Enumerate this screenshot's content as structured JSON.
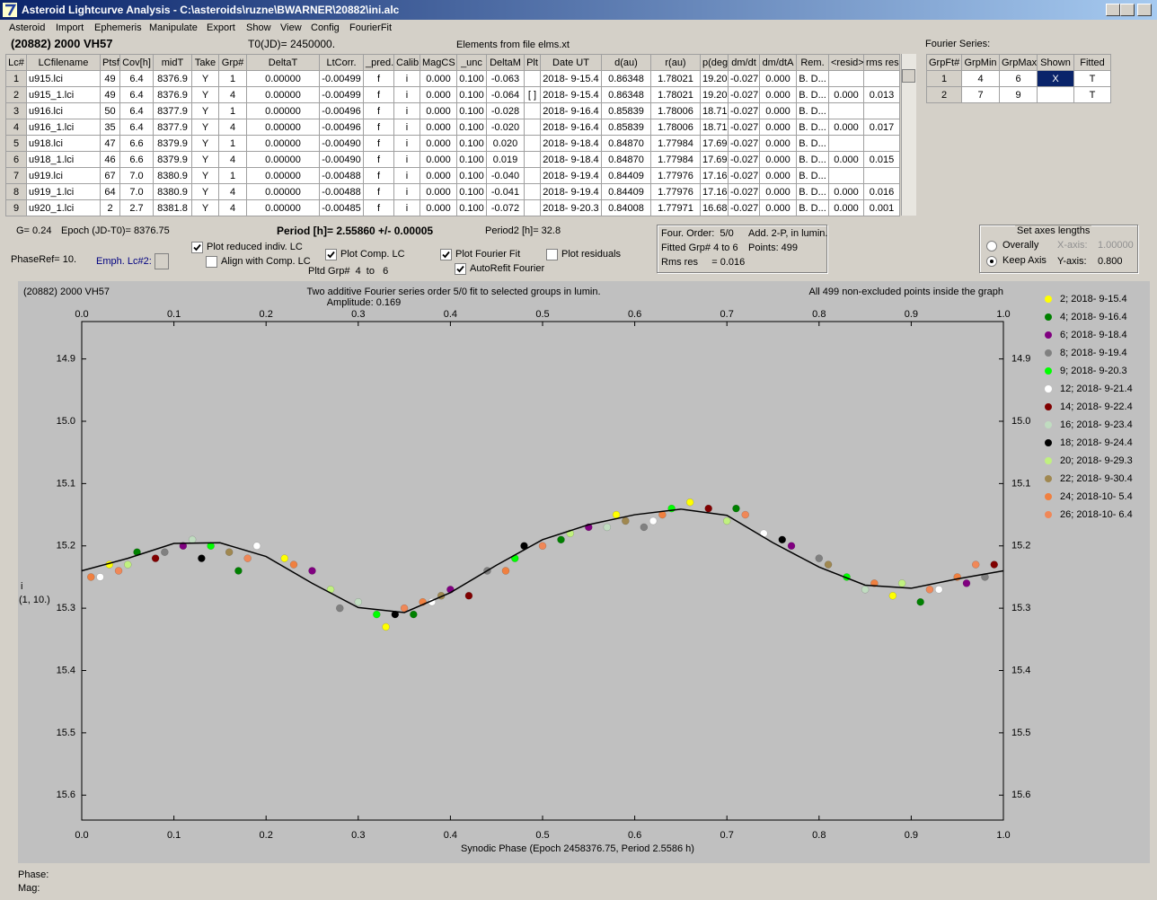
{
  "window": {
    "title": "Asteroid Lightcurve Analysis - C:\\asteroids\\ruzne\\BWARNER\\20882\\ini.alc",
    "menu": [
      "Asteroid",
      "Import",
      "Ephemeris",
      "Manipulate",
      "Export",
      "Show",
      "View",
      "Config",
      "FourierFit"
    ]
  },
  "header": {
    "object": "(20882) 2000 VH57",
    "t0": "T0(JD)= 2450000.",
    "elements": "Elements from file elms.xt",
    "fourier_label": "Fourier Series:"
  },
  "table": {
    "columns": [
      "Lc#",
      "LCfilename",
      "Ptsf",
      "Cov[h]",
      "midT",
      "Take",
      "Grp#",
      "DeltaT",
      "LtCorr.",
      "_pred.",
      "Calib.",
      "MagCS",
      "_unc",
      "DeltaM",
      "Plt",
      "Date UT",
      "d(au)",
      "r(au)",
      "p(deg)",
      "dm/dt",
      "dm/dtA",
      "Rem.",
      "<resid>",
      "rms res"
    ],
    "rows": [
      [
        "1",
        "u915.lci",
        "49",
        "6.4",
        "8376.9",
        "Y",
        "1",
        "0.00000",
        "-0.00499",
        "f",
        "i",
        "0.000",
        "0.100",
        "-0.063",
        null,
        "2018- 9-15.4",
        "0.86348",
        "1.78021",
        "19.20",
        "-0.027",
        "0.000",
        "B. D...",
        null,
        null
      ],
      [
        "2",
        "u915_1.lci",
        "49",
        "6.4",
        "8376.9",
        "Y",
        "4",
        "0.00000",
        "-0.00499",
        "f",
        "i",
        "0.000",
        "0.100",
        "-0.064",
        "[ ]",
        "2018- 9-15.4",
        "0.86348",
        "1.78021",
        "19.20",
        "-0.027",
        "0.000",
        "B. D...",
        "0.000",
        "0.013"
      ],
      [
        "3",
        "u916.lci",
        "50",
        "6.4",
        "8377.9",
        "Y",
        "1",
        "0.00000",
        "-0.00496",
        "f",
        "i",
        "0.000",
        "0.100",
        "-0.028",
        null,
        "2018- 9-16.4",
        "0.85839",
        "1.78006",
        "18.71",
        "-0.027",
        "0.000",
        "B. D...",
        null,
        null
      ],
      [
        "4",
        "u916_1.lci",
        "35",
        "6.4",
        "8377.9",
        "Y",
        "4",
        "0.00000",
        "-0.00496",
        "f",
        "i",
        "0.000",
        "0.100",
        "-0.020",
        null,
        "2018- 9-16.4",
        "0.85839",
        "1.78006",
        "18.71",
        "-0.027",
        "0.000",
        "B. D...",
        "0.000",
        "0.017"
      ],
      [
        "5",
        "u918.lci",
        "47",
        "6.6",
        "8379.9",
        "Y",
        "1",
        "0.00000",
        "-0.00490",
        "f",
        "i",
        "0.000",
        "0.100",
        "0.020",
        null,
        "2018- 9-18.4",
        "0.84870",
        "1.77984",
        "17.69",
        "-0.027",
        "0.000",
        "B. D...",
        null,
        null
      ],
      [
        "6",
        "u918_1.lci",
        "46",
        "6.6",
        "8379.9",
        "Y",
        "4",
        "0.00000",
        "-0.00490",
        "f",
        "i",
        "0.000",
        "0.100",
        "0.019",
        null,
        "2018- 9-18.4",
        "0.84870",
        "1.77984",
        "17.69",
        "-0.027",
        "0.000",
        "B. D...",
        "0.000",
        "0.015"
      ],
      [
        "7",
        "u919.lci",
        "67",
        "7.0",
        "8380.9",
        "Y",
        "1",
        "0.00000",
        "-0.00488",
        "f",
        "i",
        "0.000",
        "0.100",
        "-0.040",
        null,
        "2018- 9-19.4",
        "0.84409",
        "1.77976",
        "17.16",
        "-0.027",
        "0.000",
        "B. D...",
        null,
        null
      ],
      [
        "8",
        "u919_1.lci",
        "64",
        "7.0",
        "8380.9",
        "Y",
        "4",
        "0.00000",
        "-0.00488",
        "f",
        "i",
        "0.000",
        "0.100",
        "-0.041",
        null,
        "2018- 9-19.4",
        "0.84409",
        "1.77976",
        "17.16",
        "-0.027",
        "0.000",
        "B. D...",
        "0.000",
        "0.016"
      ],
      [
        "9",
        "u920_1.lci",
        "2",
        "2.7",
        "8381.8",
        "Y",
        "4",
        "0.00000",
        "-0.00485",
        "f",
        "i",
        "0.000",
        "0.100",
        "-0.072",
        null,
        "2018- 9-20.3",
        "0.84008",
        "1.77971",
        "16.68",
        "-0.027",
        "0.000",
        "B. D...",
        "0.000",
        "0.001"
      ]
    ]
  },
  "fourier_table": {
    "columns": [
      "GrpFt#",
      "GrpMin",
      "GrpMax",
      "Shown",
      "Fitted"
    ],
    "rows": [
      [
        "1",
        "4",
        "6",
        "X",
        "T"
      ],
      [
        "2",
        "7",
        "9",
        null,
        "T"
      ]
    ]
  },
  "info": {
    "g": "G= 0.24",
    "epoch": "Epoch (JD-T0)= 8376.75",
    "period": "Period [h]= 2.55860 +/- 0.00005",
    "period2": "Period2 [h]= 32.8",
    "phaseref": "PhaseRef= 10.",
    "emph": "Emph. Lc#2:",
    "pltd": "Pltd Grp#  4  to   6"
  },
  "checkboxes": [
    {
      "label": "Plot reduced indiv. LC",
      "checked": true
    },
    {
      "label": "Align with Comp. LC",
      "checked": false
    },
    {
      "label": "Plot Comp. LC",
      "checked": true
    },
    {
      "label": "Plot Fourier Fit",
      "checked": true
    },
    {
      "label": "Plot residuals",
      "checked": false
    },
    {
      "label": "AutoRefit Fourier",
      "checked": true
    }
  ],
  "fit_box": [
    "Four. Order:  5/0",
    "Add. 2-P, in lumin.",
    "Fitted Grp# 4 to 6",
    "Points: 499",
    "Rms res     = 0.016"
  ],
  "axes_box": {
    "title": "Set axes lengths",
    "radios": [
      {
        "label": "Overally",
        "selected": false
      },
      {
        "label": "Keep Axis",
        "selected": true
      }
    ],
    "x_label": "X-axis:",
    "x_value": "1.00000",
    "y_label": "Y-axis:",
    "y_value": "0.800"
  },
  "footer": {
    "phase": "Phase:",
    "mag": "Mag:"
  },
  "chart_data": {
    "type": "scatter",
    "title": "(20882) 2000 VH57",
    "subtitle": "Two additive Fourier series order 5/0 fit to selected groups in lumin.",
    "amplitude": "Amplitude: 0.169",
    "note": "All 499 non-excluded points inside the graph",
    "x_label": "Synodic Phase (Epoch 2458376.75, Period 2.5586 h)",
    "y_label": "i",
    "y_label2": "(1, 10.)",
    "xlim": [
      0,
      1
    ],
    "ylim": [
      14.84,
      15.64
    ],
    "y_inverted": true,
    "background": "#c0c0c0",
    "xticks": [
      {
        "value": 0,
        "label": "0.0"
      },
      0.1,
      0.2,
      0.3,
      0.4,
      0.5,
      0.6,
      0.7,
      0.8,
      0.9,
      {
        "value": 1,
        "label": "1.0"
      }
    ],
    "yticks": [
      14.9,
      {
        "value": 15,
        "label": "15.0"
      },
      15.1,
      15.2,
      15.3,
      15.4,
      15.5,
      15.6
    ],
    "fit_curve": {
      "color": "#000000",
      "x": [
        0,
        0.05,
        0.1,
        0.15,
        0.2,
        0.25,
        0.3,
        0.35,
        0.4,
        0.45,
        0.5,
        0.55,
        0.6,
        0.65,
        0.7,
        0.75,
        0.8,
        0.85,
        0.9,
        0.95,
        1
      ],
      "values": [
        15.24,
        15.22,
        15.196,
        15.195,
        15.217,
        15.26,
        15.299,
        15.307,
        15.275,
        15.231,
        15.19,
        15.166,
        15.15,
        15.141,
        15.151,
        15.195,
        15.234,
        15.263,
        15.268,
        15.253,
        15.24
      ]
    },
    "series": [
      {
        "name": "2; 2018- 9-15.4",
        "color": "#ffff00",
        "x": [
          0.03,
          0.22,
          0.33,
          0.58,
          0.66,
          0.88
        ],
        "values": [
          15.23,
          15.22,
          15.33,
          15.15,
          15.13,
          15.28
        ]
      },
      {
        "name": "4; 2018- 9-16.4",
        "color": "#008000",
        "x": [
          0.06,
          0.17,
          0.36,
          0.52,
          0.71,
          0.91
        ],
        "values": [
          15.21,
          15.24,
          15.31,
          15.19,
          15.14,
          15.29
        ]
      },
      {
        "name": "6; 2018- 9-18.4",
        "color": "#800080",
        "x": [
          0.11,
          0.25,
          0.4,
          0.55,
          0.77,
          0.96
        ],
        "values": [
          15.2,
          15.24,
          15.27,
          15.17,
          15.2,
          15.26
        ]
      },
      {
        "name": "8; 2018- 9-19.4",
        "color": "#808080",
        "x": [
          0.09,
          0.28,
          0.44,
          0.61,
          0.8,
          0.98
        ],
        "values": [
          15.21,
          15.3,
          15.24,
          15.17,
          15.22,
          15.25
        ]
      },
      {
        "name": "9; 2018- 9-20.3",
        "color": "#00ff00",
        "x": [
          0.14,
          0.32,
          0.47,
          0.64,
          0.83
        ],
        "values": [
          15.2,
          15.31,
          15.22,
          15.14,
          15.25
        ]
      },
      {
        "name": "12; 2018- 9-21.4",
        "color": "#ffffff",
        "x": [
          0.02,
          0.19,
          0.38,
          0.62,
          0.74,
          0.93
        ],
        "values": [
          15.25,
          15.2,
          15.29,
          15.16,
          15.18,
          15.27
        ]
      },
      {
        "name": "14; 2018- 9-22.4",
        "color": "#800000",
        "x": [
          0.08,
          0.42,
          0.68,
          0.99
        ],
        "values": [
          15.22,
          15.28,
          15.14,
          15.23
        ]
      },
      {
        "name": "16; 2018- 9-23.4",
        "color": "#c0dcc0",
        "x": [
          0.12,
          0.3,
          0.57,
          0.85
        ],
        "values": [
          15.19,
          15.29,
          15.17,
          15.27
        ]
      },
      {
        "name": "18; 2018- 9-24.4",
        "color": "#000000",
        "x": [
          0.13,
          0.34,
          0.48,
          0.76
        ],
        "values": [
          15.22,
          15.31,
          15.2,
          15.19
        ]
      },
      {
        "name": "20; 2018- 9-29.3",
        "color": "#c0f080",
        "x": [
          0.05,
          0.27,
          0.53,
          0.7,
          0.89
        ],
        "values": [
          15.23,
          15.27,
          15.18,
          15.16,
          15.26
        ]
      },
      {
        "name": "22; 2018- 9-30.4",
        "color": "#a08850",
        "x": [
          0.16,
          0.39,
          0.59,
          0.81
        ],
        "values": [
          15.21,
          15.28,
          15.16,
          15.23
        ]
      },
      {
        "name": "24; 2018-10- 5.4",
        "color": "#f08040",
        "x": [
          0.01,
          0.23,
          0.37,
          0.46,
          0.63,
          0.86,
          0.95
        ],
        "values": [
          15.25,
          15.23,
          15.29,
          15.24,
          15.15,
          15.26,
          15.25
        ]
      },
      {
        "name": "26; 2018-10- 6.4",
        "color": "#f08858",
        "x": [
          0.04,
          0.18,
          0.35,
          0.5,
          0.72,
          0.92,
          0.97
        ],
        "values": [
          15.24,
          15.22,
          15.3,
          15.2,
          15.15,
          15.27,
          15.23
        ]
      }
    ]
  }
}
